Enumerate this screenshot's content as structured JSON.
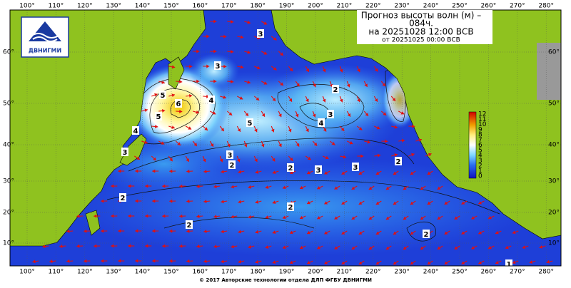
{
  "header": {
    "title": "Прогноз высоты волн (м) –",
    "title_line2": "084ч.",
    "valid": "на 20251028 12:00 ВСВ",
    "issued": "от 20251025 00:00 ВСВ"
  },
  "logo": {
    "text": "ДВНИГМИ"
  },
  "map": {
    "lon_labels": [
      "100°",
      "110°",
      "120°",
      "130°",
      "140°",
      "150°",
      "160°",
      "170°",
      "180°",
      "190°",
      "200°",
      "210°",
      "220°",
      "230°",
      "240°",
      "250°",
      "260°",
      "270°",
      "280°"
    ],
    "lat_labels": [
      "60°",
      "50°",
      "40°",
      "30°",
      "20°",
      "10°"
    ],
    "contour_labels": [
      "3",
      "3",
      "6",
      "5",
      "5",
      "4",
      "4",
      "3",
      "5",
      "3",
      "2",
      "2",
      "3",
      "3",
      "2",
      "4",
      "3",
      "2",
      "2",
      "2",
      "2",
      "2",
      "1"
    ]
  },
  "colorbar": {
    "labels": [
      "12",
      "11",
      "10",
      "9",
      "8",
      "7",
      "6",
      "5",
      "4",
      "3",
      "2",
      "1",
      "0"
    ]
  },
  "footer": "© 2017 Авторские технологии отдела ДЛП ФГБУ ДВНИГМИ"
}
